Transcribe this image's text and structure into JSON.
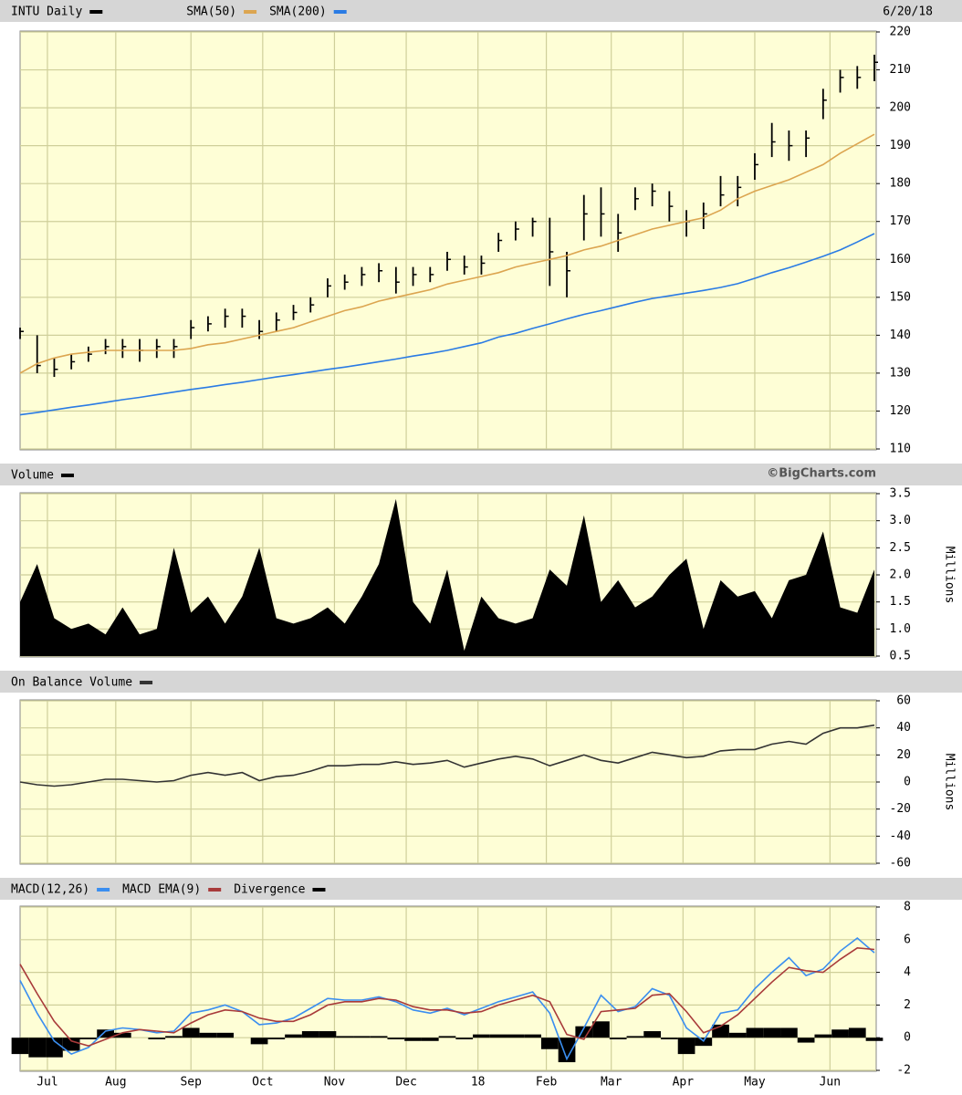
{
  "chart_data": {
    "type": "stock",
    "x": [
      0,
      5,
      10,
      15,
      20,
      25,
      30,
      35,
      40,
      45,
      50,
      55,
      60,
      65,
      70,
      75,
      80,
      85,
      90,
      95,
      100,
      105,
      110,
      115,
      120,
      125,
      130,
      135,
      140,
      145,
      150,
      155,
      160,
      165,
      170,
      175,
      180,
      185,
      190,
      195,
      200,
      205,
      210,
      215,
      220,
      225,
      230,
      235,
      240,
      245,
      250
    ],
    "xlim": [
      0,
      250
    ],
    "xticks": [
      {
        "value": 8,
        "label": "Jul"
      },
      {
        "value": 28,
        "label": "Aug"
      },
      {
        "value": 50,
        "label": "Sep"
      },
      {
        "value": 71,
        "label": "Oct"
      },
      {
        "value": 92,
        "label": "Nov"
      },
      {
        "value": 113,
        "label": "Dec"
      },
      {
        "value": 134,
        "label": "18"
      },
      {
        "value": 154,
        "label": "Feb"
      },
      {
        "value": 173,
        "label": "Mar"
      },
      {
        "value": 194,
        "label": "Apr"
      },
      {
        "value": 215,
        "label": "May"
      },
      {
        "value": 237,
        "label": "Jun"
      }
    ],
    "grid": true,
    "panels": [
      {
        "type": "ohlc",
        "name": "INTU Daily",
        "color": "#000000",
        "date": "6/20/18",
        "high": [
          142,
          140,
          134,
          135,
          137,
          139,
          139,
          139,
          139,
          139,
          144,
          145,
          147,
          147,
          144,
          146,
          148,
          150,
          155,
          156,
          158,
          159,
          158,
          158,
          158,
          162,
          161,
          161,
          167,
          170,
          171,
          171,
          162,
          177,
          179,
          172,
          179,
          180,
          178,
          173,
          175,
          182,
          182,
          188,
          196,
          194,
          194,
          205,
          210,
          211,
          214
        ],
        "low": [
          139,
          130,
          129,
          131,
          133,
          135,
          134,
          133,
          134,
          134,
          139,
          141,
          142,
          142,
          139,
          141,
          144,
          146,
          150,
          152,
          153,
          154,
          151,
          153,
          154,
          157,
          156,
          156,
          162,
          165,
          166,
          153,
          150,
          165,
          166,
          162,
          173,
          174,
          170,
          166,
          168,
          174,
          174,
          181,
          187,
          186,
          187,
          197,
          204,
          205,
          207
        ],
        "close": [
          141,
          132,
          131,
          133,
          135,
          137,
          137,
          136,
          137,
          137,
          142,
          143,
          145,
          145,
          141,
          144,
          146,
          148,
          153,
          154,
          156,
          157,
          154,
          156,
          156,
          160,
          158,
          159,
          165,
          168,
          170,
          162,
          157,
          172,
          172,
          167,
          176,
          178,
          174,
          170,
          172,
          177,
          179,
          185,
          191,
          190,
          192,
          202,
          208,
          208,
          212
        ],
        "series": [
          {
            "name": "SMA(50)",
            "color": "#dca550",
            "values": [
              130,
              132.5,
              134,
              135,
              135.5,
              136,
              136,
              136,
              136,
              136,
              136.5,
              137.5,
              138,
              139,
              140,
              141,
              142,
              143.5,
              145,
              146.5,
              147.5,
              149,
              150,
              151,
              152,
              153.5,
              154.5,
              155.5,
              156.5,
              158,
              159,
              160,
              161,
              162.5,
              163.5,
              165,
              166.5,
              168,
              169,
              170,
              171,
              173,
              176,
              178,
              179.5,
              181,
              183,
              185,
              188,
              190.5,
              193
            ]
          },
          {
            "name": "SMA(200)",
            "color": "#2a7be4",
            "values": [
              119,
              119.6,
              120.3,
              121,
              121.6,
              122.3,
              123,
              123.6,
              124.3,
              125,
              125.7,
              126.3,
              127,
              127.6,
              128.3,
              129,
              129.6,
              130.3,
              131,
              131.6,
              132.3,
              133,
              133.7,
              134.5,
              135.2,
              136,
              137,
              138,
              139.5,
              140.5,
              141.8,
              143,
              144.3,
              145.5,
              146.5,
              147.6,
              148.7,
              149.7,
              150.4,
              151.1,
              151.8,
              152.6,
              153.6,
              155,
              156.5,
              157.8,
              159.3,
              160.8,
              162.5,
              164.6,
              166.8
            ]
          }
        ],
        "ylim": [
          110,
          220
        ],
        "yticks": [
          110,
          120,
          130,
          140,
          150,
          160,
          170,
          180,
          190,
          200,
          210,
          220
        ]
      },
      {
        "type": "area",
        "credit": "©BigCharts.com",
        "y_label": "Millions",
        "series": [
          {
            "name": "Volume",
            "color": "#000000",
            "values": [
              1.5,
              2.2,
              1.2,
              1.0,
              1.1,
              0.9,
              1.4,
              0.9,
              1.0,
              2.5,
              1.3,
              1.6,
              1.1,
              1.6,
              2.5,
              1.2,
              1.1,
              1.2,
              1.4,
              1.1,
              1.6,
              2.2,
              3.4,
              1.5,
              1.1,
              2.1,
              0.6,
              1.6,
              1.2,
              1.1,
              1.2,
              2.1,
              1.8,
              3.1,
              1.5,
              1.9,
              1.4,
              1.6,
              2.0,
              2.3,
              1.0,
              1.9,
              1.6,
              1.7,
              1.2,
              1.9,
              2.0,
              2.8,
              1.4,
              1.3,
              2.1
            ]
          }
        ],
        "ylim": [
          0.5,
          3.5
        ],
        "yticks": [
          0.5,
          {
            "value": 1,
            "label": "1.0"
          },
          1.5,
          {
            "value": 2,
            "label": "2.0"
          },
          2.5,
          {
            "value": 3,
            "label": "3.0"
          },
          3.5
        ]
      },
      {
        "type": "line",
        "y_label": "Millions",
        "series": [
          {
            "name": "On Balance Volume",
            "color": "#333333",
            "values": [
              0,
              -2,
              -3,
              -2,
              0,
              2,
              2,
              1,
              0,
              1,
              5,
              7,
              5,
              7,
              1,
              4,
              5,
              8,
              12,
              12,
              13,
              13,
              15,
              13,
              14,
              16,
              11,
              14,
              17,
              19,
              17,
              12,
              16,
              20,
              16,
              14,
              18,
              22,
              20,
              18,
              19,
              23,
              24,
              24,
              28,
              30,
              28,
              36,
              40,
              40,
              42
            ]
          }
        ],
        "ylim": [
          -60,
          60
        ],
        "yticks": [
          -60,
          -40,
          -20,
          0,
          20,
          40,
          60
        ]
      },
      {
        "type": "line",
        "series": [
          {
            "name": "MACD(12,26)",
            "color": "#3a8ef0",
            "values": [
              3.5,
              1.5,
              -0.2,
              -1,
              -0.6,
              0.4,
              0.6,
              0.5,
              0.3,
              0.4,
              1.5,
              1.7,
              2.0,
              1.6,
              0.8,
              0.9,
              1.2,
              1.8,
              2.4,
              2.3,
              2.3,
              2.5,
              2.2,
              1.7,
              1.5,
              1.8,
              1.4,
              1.8,
              2.2,
              2.5,
              2.8,
              1.5,
              -1.3,
              0.6,
              2.6,
              1.6,
              1.9,
              3.0,
              2.6,
              0.6,
              -0.2,
              1.5,
              1.7,
              3.0,
              4.0,
              4.9,
              3.8,
              4.2,
              5.3,
              6.1,
              5.2
            ]
          },
          {
            "name": "MACD EMA(9)",
            "color": "#a83a3a",
            "values": [
              4.5,
              2.7,
              1.0,
              -0.2,
              -0.5,
              -0.1,
              0.3,
              0.5,
              0.4,
              0.3,
              0.9,
              1.4,
              1.7,
              1.6,
              1.2,
              1.0,
              1.0,
              1.4,
              2.0,
              2.2,
              2.2,
              2.4,
              2.3,
              1.9,
              1.7,
              1.7,
              1.5,
              1.6,
              2.0,
              2.3,
              2.6,
              2.2,
              0.2,
              -0.1,
              1.6,
              1.7,
              1.8,
              2.6,
              2.7,
              1.6,
              0.3,
              0.7,
              1.4,
              2.4,
              3.4,
              4.3,
              4.1,
              4.0,
              4.8,
              5.5,
              5.4
            ]
          },
          {
            "name": "Divergence",
            "color": "#000000",
            "type": "bar",
            "values": [
              -1.0,
              -1.2,
              -1.2,
              -0.8,
              -0.1,
              0.5,
              0.3,
              0,
              -0.1,
              0.1,
              0.6,
              0.3,
              0.3,
              0,
              -0.4,
              -0.1,
              0.2,
              0.4,
              0.4,
              0.1,
              0.1,
              0.1,
              -0.1,
              -0.2,
              -0.2,
              0.1,
              -0.1,
              0.2,
              0.2,
              0.2,
              0.2,
              -0.7,
              -1.5,
              0.7,
              1.0,
              -0.1,
              0.1,
              0.4,
              -0.1,
              -1.0,
              -0.5,
              0.8,
              0.3,
              0.6,
              0.6,
              0.6,
              -0.3,
              0.2,
              0.5,
              0.6,
              -0.2
            ]
          }
        ],
        "ylim": [
          -2,
          8
        ],
        "yticks": [
          -2,
          0,
          2,
          4,
          6,
          8
        ]
      }
    ]
  }
}
